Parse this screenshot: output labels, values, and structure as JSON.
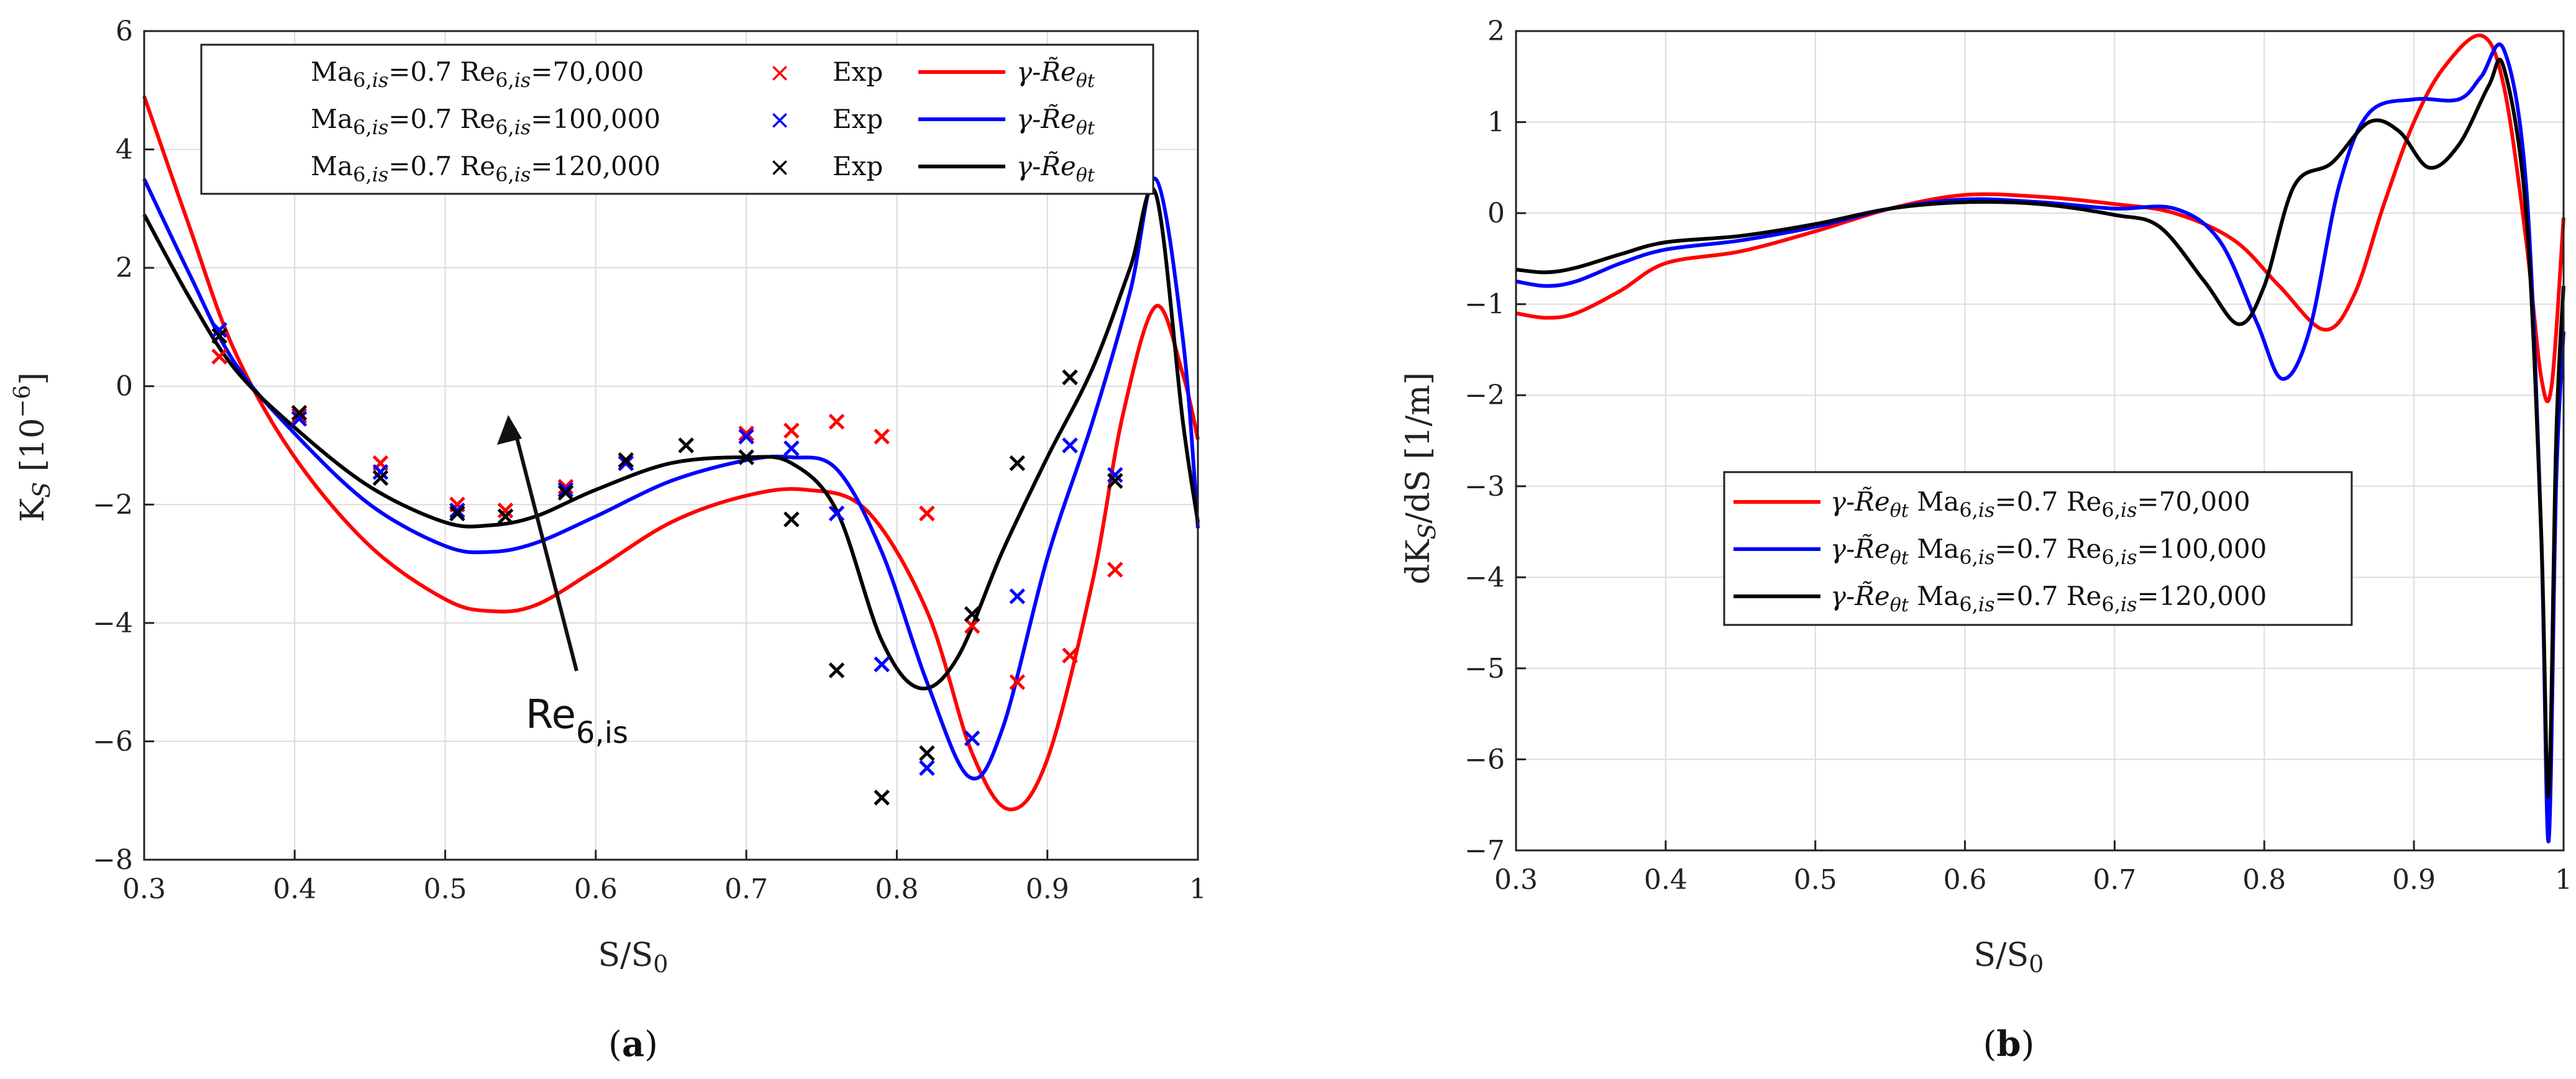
{
  "chart_data": [
    {
      "type": "line",
      "panel": "a",
      "caption_letter": "a",
      "xlabel": "S/S0",
      "ylabel": "KS [10-6]",
      "xlim": [
        0.3,
        1.0
      ],
      "ylim": [
        -8,
        6
      ],
      "x_ticks": [
        0.3,
        0.4,
        0.5,
        0.6,
        0.7,
        0.8,
        0.9,
        1.0
      ],
      "x_tick_labels": [
        "0.3",
        "0.4",
        "0.5",
        "0.6",
        "0.7",
        "0.8",
        "0.9",
        "1"
      ],
      "y_ticks": [
        -8,
        -6,
        -4,
        -2,
        0,
        2,
        4,
        6
      ],
      "y_tick_labels": [
        "−8",
        "−6",
        "−4",
        "−2",
        "0",
        "2",
        "4",
        "6"
      ],
      "grid": true,
      "legend_position": "top-left",
      "annotation": {
        "text": "Re",
        "subscript": "6,is",
        "arrow": "points toward increasing Re"
      },
      "series": [
        {
          "name": "γ-Reθt Ma6,is=0.7 Re6,is=70,000",
          "kind": "line",
          "color": "#ff0000",
          "x": [
            0.3,
            0.33,
            0.36,
            0.4,
            0.45,
            0.5,
            0.53,
            0.56,
            0.6,
            0.65,
            0.7,
            0.74,
            0.78,
            0.82,
            0.85,
            0.875,
            0.9,
            0.93,
            0.95,
            0.972,
            0.99,
            1.0
          ],
          "y": [
            4.9,
            2.7,
            0.6,
            -1.2,
            -2.7,
            -3.6,
            -3.8,
            -3.7,
            -3.1,
            -2.3,
            -1.85,
            -1.75,
            -2.1,
            -3.8,
            -6.2,
            -7.15,
            -6.3,
            -3.3,
            -0.5,
            1.35,
            0.2,
            -0.9
          ]
        },
        {
          "name": "γ-Reθt Ma6,is=0.7 Re6,is=100,000",
          "kind": "line",
          "color": "#0000ff",
          "x": [
            0.3,
            0.33,
            0.36,
            0.4,
            0.45,
            0.5,
            0.53,
            0.56,
            0.6,
            0.65,
            0.7,
            0.73,
            0.76,
            0.79,
            0.82,
            0.848,
            0.87,
            0.9,
            0.93,
            0.955,
            0.972,
            0.99,
            1.0
          ],
          "y": [
            3.5,
            1.9,
            0.4,
            -0.8,
            -2.0,
            -2.7,
            -2.8,
            -2.65,
            -2.2,
            -1.6,
            -1.25,
            -1.2,
            -1.4,
            -2.8,
            -5.0,
            -6.6,
            -5.8,
            -2.9,
            -0.6,
            1.6,
            3.5,
            0.8,
            -2.4
          ]
        },
        {
          "name": "γ-Reθt Ma6,is=0.7 Re6,is=120,000",
          "kind": "line",
          "color": "#000000",
          "x": [
            0.3,
            0.33,
            0.36,
            0.4,
            0.45,
            0.5,
            0.53,
            0.56,
            0.6,
            0.65,
            0.7,
            0.73,
            0.76,
            0.79,
            0.815,
            0.84,
            0.87,
            0.9,
            0.93,
            0.955,
            0.972,
            0.99,
            1.0
          ],
          "y": [
            2.9,
            1.5,
            0.3,
            -0.7,
            -1.7,
            -2.3,
            -2.35,
            -2.2,
            -1.75,
            -1.3,
            -1.2,
            -1.3,
            -2.1,
            -4.3,
            -5.1,
            -4.6,
            -2.8,
            -1.2,
            0.3,
            2.0,
            3.25,
            -0.6,
            -2.3
          ]
        },
        {
          "name": "Exp Ma6,is=0.7 Re6,is=70,000",
          "kind": "markers",
          "color": "#ff0000",
          "x": [
            0.35,
            0.403,
            0.457,
            0.508,
            0.54,
            0.58,
            0.62,
            0.7,
            0.73,
            0.76,
            0.79,
            0.82,
            0.85,
            0.88,
            0.915,
            0.945
          ],
          "y": [
            0.5,
            -0.5,
            -1.3,
            -2.0,
            -2.1,
            -1.7,
            -1.3,
            -0.8,
            -0.75,
            -0.6,
            -0.85,
            -2.15,
            -4.05,
            -5.0,
            -4.55,
            -3.1
          ]
        },
        {
          "name": "Exp Ma6,is=0.7 Re6,is=100,000",
          "kind": "markers",
          "color": "#0000ff",
          "x": [
            0.35,
            0.403,
            0.457,
            0.508,
            0.54,
            0.58,
            0.62,
            0.7,
            0.73,
            0.76,
            0.79,
            0.82,
            0.85,
            0.88,
            0.915,
            0.945
          ],
          "y": [
            0.95,
            -0.55,
            -1.45,
            -2.1,
            -2.2,
            -1.75,
            -1.3,
            -0.85,
            -1.05,
            -2.15,
            -4.7,
            -6.45,
            -5.95,
            -3.55,
            -1.0,
            -1.5
          ]
        },
        {
          "name": "Exp Ma6,is=0.7 Re6,is=120,000",
          "kind": "markers",
          "color": "#000000",
          "x": [
            0.35,
            0.403,
            0.457,
            0.508,
            0.54,
            0.58,
            0.62,
            0.66,
            0.7,
            0.73,
            0.76,
            0.79,
            0.82,
            0.85,
            0.88,
            0.915,
            0.945
          ],
          "y": [
            0.85,
            -0.45,
            -1.55,
            -2.15,
            -2.2,
            -1.8,
            -1.25,
            -1.0,
            -1.2,
            -2.25,
            -4.8,
            -6.95,
            -6.2,
            -3.85,
            -1.3,
            0.15,
            -1.6
          ]
        }
      ],
      "legend": [
        {
          "label": "Ma6,is=0.7 Re6,is=70,000",
          "marker_label": "Exp",
          "line_label": "γ-R̃eθt",
          "color": "#ff0000"
        },
        {
          "label": "Ma6,is=0.7 Re6,is=100,000",
          "marker_label": "Exp",
          "line_label": "γ-R̃eθt",
          "color": "#0000ff"
        },
        {
          "label": "Ma6,is=0.7 Re6,is=120,000",
          "marker_label": "Exp",
          "line_label": "γ-R̃eθt",
          "color": "#000000"
        }
      ]
    },
    {
      "type": "line",
      "panel": "b",
      "caption_letter": "b",
      "xlabel": "S/S0",
      "ylabel": "dKS/dS [1/m]",
      "xlim": [
        0.3,
        1.0
      ],
      "ylim": [
        -7,
        2
      ],
      "x_ticks": [
        0.3,
        0.4,
        0.5,
        0.6,
        0.7,
        0.8,
        0.9,
        1.0
      ],
      "x_tick_labels": [
        "0.3",
        "0.4",
        "0.5",
        "0.6",
        "0.7",
        "0.8",
        "0.9",
        "1"
      ],
      "y_ticks": [
        -7,
        -6,
        -5,
        -4,
        -3,
        -2,
        -1,
        0,
        1,
        2
      ],
      "y_tick_labels": [
        "−7",
        "−6",
        "−5",
        "−4",
        "−3",
        "−2",
        "−1",
        "0",
        "1",
        "2"
      ],
      "grid": true,
      "legend_position": "center",
      "series": [
        {
          "name": "γ-Reθt Ma6,is=0.7 Re6,is=70,000",
          "color": "#ff0000",
          "x": [
            0.3,
            0.32,
            0.34,
            0.37,
            0.4,
            0.45,
            0.5,
            0.55,
            0.6,
            0.65,
            0.7,
            0.74,
            0.78,
            0.81,
            0.84,
            0.86,
            0.88,
            0.9,
            0.92,
            0.945,
            0.96,
            0.975,
            0.985,
            0.992,
            1.0
          ],
          "y": [
            -1.1,
            -1.15,
            -1.1,
            -0.85,
            -0.55,
            -0.42,
            -0.2,
            0.05,
            0.2,
            0.18,
            0.1,
            0.0,
            -0.3,
            -0.8,
            -1.28,
            -0.9,
            0.1,
            1.0,
            1.6,
            1.95,
            1.4,
            -0.3,
            -1.8,
            -1.9,
            -0.05
          ]
        },
        {
          "name": "γ-Reθt Ma6,is=0.7 Re6,is=100,000",
          "color": "#0000ff",
          "x": [
            0.3,
            0.32,
            0.34,
            0.37,
            0.4,
            0.45,
            0.5,
            0.55,
            0.6,
            0.65,
            0.7,
            0.74,
            0.77,
            0.795,
            0.812,
            0.83,
            0.85,
            0.87,
            0.9,
            0.93,
            0.945,
            0.96,
            0.975,
            0.985,
            0.99,
            0.995,
            1.0
          ],
          "y": [
            -0.75,
            -0.8,
            -0.75,
            -0.55,
            -0.4,
            -0.3,
            -0.15,
            0.05,
            0.15,
            0.12,
            0.05,
            0.05,
            -0.3,
            -1.2,
            -1.82,
            -1.3,
            0.3,
            1.1,
            1.25,
            1.25,
            1.5,
            1.8,
            0.3,
            -3.5,
            -6.9,
            -3.0,
            -1.3
          ]
        },
        {
          "name": "γ-Reθt Ma6,is=0.7 Re6,is=120,000",
          "color": "#000000",
          "x": [
            0.3,
            0.32,
            0.34,
            0.37,
            0.4,
            0.45,
            0.5,
            0.55,
            0.6,
            0.65,
            0.7,
            0.73,
            0.76,
            0.783,
            0.8,
            0.82,
            0.845,
            0.87,
            0.89,
            0.91,
            0.93,
            0.95,
            0.96,
            0.975,
            0.985,
            0.99,
            0.995,
            1.0
          ],
          "y": [
            -0.62,
            -0.65,
            -0.6,
            -0.45,
            -0.32,
            -0.25,
            -0.12,
            0.05,
            0.12,
            0.1,
            -0.02,
            -0.15,
            -0.75,
            -1.22,
            -0.8,
            0.3,
            0.55,
            1.0,
            0.9,
            0.5,
            0.75,
            1.4,
            1.6,
            0.0,
            -3.5,
            -6.4,
            -2.5,
            -0.8
          ]
        }
      ],
      "legend": [
        {
          "line_label": "γ-R̃eθt",
          "label": "Ma6,is=0.7 Re6,is=70,000",
          "color": "#ff0000"
        },
        {
          "line_label": "γ-R̃eθt",
          "label": "Ma6,is=0.7 Re6,is=100,000",
          "color": "#0000ff"
        },
        {
          "line_label": "γ-R̃eθt",
          "label": "Ma6,is=0.7 Re6,is=120,000",
          "color": "#000000"
        }
      ]
    }
  ]
}
